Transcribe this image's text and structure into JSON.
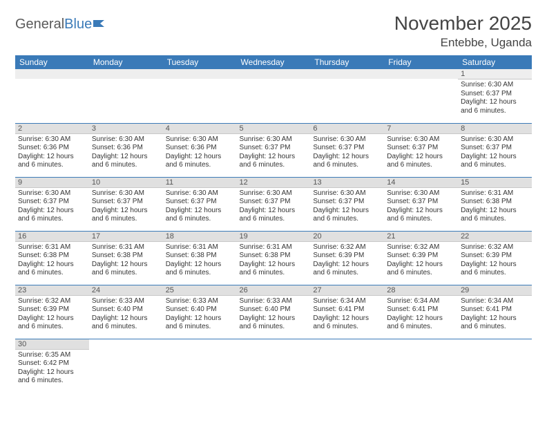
{
  "logo": {
    "general": "General",
    "blue": "Blue"
  },
  "title": "November 2025",
  "location": "Entebbe, Uganda",
  "colors": {
    "header_bg": "#3a7ab8",
    "header_text": "#ffffff",
    "daynum_bg": "#e0e0e0",
    "week_border": "#3a7ab8"
  },
  "weekdays": [
    "Sunday",
    "Monday",
    "Tuesday",
    "Wednesday",
    "Thursday",
    "Friday",
    "Saturday"
  ],
  "weeks": [
    [
      null,
      null,
      null,
      null,
      null,
      null,
      {
        "n": "1",
        "sunrise": "Sunrise: 6:30 AM",
        "sunset": "Sunset: 6:37 PM",
        "day1": "Daylight: 12 hours",
        "day2": "and 6 minutes."
      }
    ],
    [
      {
        "n": "2",
        "sunrise": "Sunrise: 6:30 AM",
        "sunset": "Sunset: 6:36 PM",
        "day1": "Daylight: 12 hours",
        "day2": "and 6 minutes."
      },
      {
        "n": "3",
        "sunrise": "Sunrise: 6:30 AM",
        "sunset": "Sunset: 6:36 PM",
        "day1": "Daylight: 12 hours",
        "day2": "and 6 minutes."
      },
      {
        "n": "4",
        "sunrise": "Sunrise: 6:30 AM",
        "sunset": "Sunset: 6:36 PM",
        "day1": "Daylight: 12 hours",
        "day2": "and 6 minutes."
      },
      {
        "n": "5",
        "sunrise": "Sunrise: 6:30 AM",
        "sunset": "Sunset: 6:37 PM",
        "day1": "Daylight: 12 hours",
        "day2": "and 6 minutes."
      },
      {
        "n": "6",
        "sunrise": "Sunrise: 6:30 AM",
        "sunset": "Sunset: 6:37 PM",
        "day1": "Daylight: 12 hours",
        "day2": "and 6 minutes."
      },
      {
        "n": "7",
        "sunrise": "Sunrise: 6:30 AM",
        "sunset": "Sunset: 6:37 PM",
        "day1": "Daylight: 12 hours",
        "day2": "and 6 minutes."
      },
      {
        "n": "8",
        "sunrise": "Sunrise: 6:30 AM",
        "sunset": "Sunset: 6:37 PM",
        "day1": "Daylight: 12 hours",
        "day2": "and 6 minutes."
      }
    ],
    [
      {
        "n": "9",
        "sunrise": "Sunrise: 6:30 AM",
        "sunset": "Sunset: 6:37 PM",
        "day1": "Daylight: 12 hours",
        "day2": "and 6 minutes."
      },
      {
        "n": "10",
        "sunrise": "Sunrise: 6:30 AM",
        "sunset": "Sunset: 6:37 PM",
        "day1": "Daylight: 12 hours",
        "day2": "and 6 minutes."
      },
      {
        "n": "11",
        "sunrise": "Sunrise: 6:30 AM",
        "sunset": "Sunset: 6:37 PM",
        "day1": "Daylight: 12 hours",
        "day2": "and 6 minutes."
      },
      {
        "n": "12",
        "sunrise": "Sunrise: 6:30 AM",
        "sunset": "Sunset: 6:37 PM",
        "day1": "Daylight: 12 hours",
        "day2": "and 6 minutes."
      },
      {
        "n": "13",
        "sunrise": "Sunrise: 6:30 AM",
        "sunset": "Sunset: 6:37 PM",
        "day1": "Daylight: 12 hours",
        "day2": "and 6 minutes."
      },
      {
        "n": "14",
        "sunrise": "Sunrise: 6:30 AM",
        "sunset": "Sunset: 6:37 PM",
        "day1": "Daylight: 12 hours",
        "day2": "and 6 minutes."
      },
      {
        "n": "15",
        "sunrise": "Sunrise: 6:31 AM",
        "sunset": "Sunset: 6:38 PM",
        "day1": "Daylight: 12 hours",
        "day2": "and 6 minutes."
      }
    ],
    [
      {
        "n": "16",
        "sunrise": "Sunrise: 6:31 AM",
        "sunset": "Sunset: 6:38 PM",
        "day1": "Daylight: 12 hours",
        "day2": "and 6 minutes."
      },
      {
        "n": "17",
        "sunrise": "Sunrise: 6:31 AM",
        "sunset": "Sunset: 6:38 PM",
        "day1": "Daylight: 12 hours",
        "day2": "and 6 minutes."
      },
      {
        "n": "18",
        "sunrise": "Sunrise: 6:31 AM",
        "sunset": "Sunset: 6:38 PM",
        "day1": "Daylight: 12 hours",
        "day2": "and 6 minutes."
      },
      {
        "n": "19",
        "sunrise": "Sunrise: 6:31 AM",
        "sunset": "Sunset: 6:38 PM",
        "day1": "Daylight: 12 hours",
        "day2": "and 6 minutes."
      },
      {
        "n": "20",
        "sunrise": "Sunrise: 6:32 AM",
        "sunset": "Sunset: 6:39 PM",
        "day1": "Daylight: 12 hours",
        "day2": "and 6 minutes."
      },
      {
        "n": "21",
        "sunrise": "Sunrise: 6:32 AM",
        "sunset": "Sunset: 6:39 PM",
        "day1": "Daylight: 12 hours",
        "day2": "and 6 minutes."
      },
      {
        "n": "22",
        "sunrise": "Sunrise: 6:32 AM",
        "sunset": "Sunset: 6:39 PM",
        "day1": "Daylight: 12 hours",
        "day2": "and 6 minutes."
      }
    ],
    [
      {
        "n": "23",
        "sunrise": "Sunrise: 6:32 AM",
        "sunset": "Sunset: 6:39 PM",
        "day1": "Daylight: 12 hours",
        "day2": "and 6 minutes."
      },
      {
        "n": "24",
        "sunrise": "Sunrise: 6:33 AM",
        "sunset": "Sunset: 6:40 PM",
        "day1": "Daylight: 12 hours",
        "day2": "and 6 minutes."
      },
      {
        "n": "25",
        "sunrise": "Sunrise: 6:33 AM",
        "sunset": "Sunset: 6:40 PM",
        "day1": "Daylight: 12 hours",
        "day2": "and 6 minutes."
      },
      {
        "n": "26",
        "sunrise": "Sunrise: 6:33 AM",
        "sunset": "Sunset: 6:40 PM",
        "day1": "Daylight: 12 hours",
        "day2": "and 6 minutes."
      },
      {
        "n": "27",
        "sunrise": "Sunrise: 6:34 AM",
        "sunset": "Sunset: 6:41 PM",
        "day1": "Daylight: 12 hours",
        "day2": "and 6 minutes."
      },
      {
        "n": "28",
        "sunrise": "Sunrise: 6:34 AM",
        "sunset": "Sunset: 6:41 PM",
        "day1": "Daylight: 12 hours",
        "day2": "and 6 minutes."
      },
      {
        "n": "29",
        "sunrise": "Sunrise: 6:34 AM",
        "sunset": "Sunset: 6:41 PM",
        "day1": "Daylight: 12 hours",
        "day2": "and 6 minutes."
      }
    ],
    [
      {
        "n": "30",
        "sunrise": "Sunrise: 6:35 AM",
        "sunset": "Sunset: 6:42 PM",
        "day1": "Daylight: 12 hours",
        "day2": "and 6 minutes."
      },
      null,
      null,
      null,
      null,
      null,
      null
    ]
  ]
}
